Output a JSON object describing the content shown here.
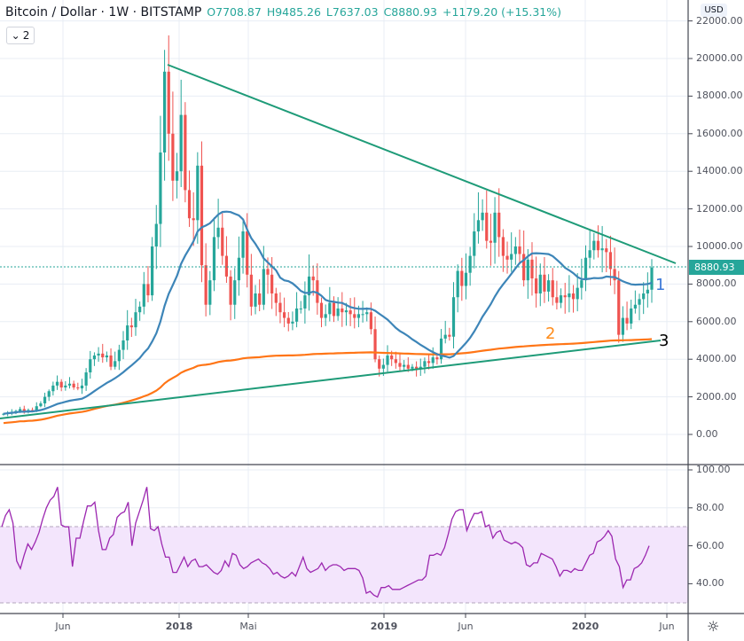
{
  "header": {
    "symbol": "Bitcoin / Dollar · 1W · BITSTAMP",
    "open": "O7708.87",
    "high": "H9485.26",
    "low": "L7637.03",
    "close": "C8880.93",
    "change": "+1179.20 (+15.31%)",
    "collapse_label": "2"
  },
  "axis": {
    "currency": "USD",
    "current_price": "8880.93",
    "price_ticks": [
      "22000.00",
      "20000.00",
      "18000.00",
      "16000.00",
      "14000.00",
      "12000.00",
      "10000.00",
      "8000.00",
      "6000.00",
      "4000.00",
      "2000.00",
      "0.00"
    ],
    "rsi_ticks": [
      "100.00",
      "80.00",
      "60.00",
      "40.00"
    ],
    "time_ticks": [
      "Jun",
      "2018",
      "Mai",
      "2019",
      "Jun",
      "2020",
      "Jun"
    ]
  },
  "annotations": {
    "label_1": "1",
    "label_2": "2",
    "label_3": "3"
  },
  "colors": {
    "up": "#26a69a",
    "down": "#ef5350",
    "ma_fast": "#3d85b8",
    "ma_slow": "#ff7516",
    "trendline": "#1e9b78",
    "rsi": "#9c27b0",
    "rsi_band": "#f3e5fc",
    "label_1": "#3b78d8",
    "label_2": "#ff8c1a",
    "label_3": "#000000"
  },
  "chart_data": [
    {
      "type": "candlestick",
      "title": "Bitcoin / Dollar · 1W · BITSTAMP",
      "ylabel": "USD",
      "ylim": [
        -1000,
        23000
      ],
      "grid": true,
      "x_ticks": [
        "Jun 2017",
        "2018",
        "Mai 2018",
        "2019",
        "Jun 2019",
        "2020",
        "Jun 2020"
      ],
      "last_bar": {
        "open": 7708.87,
        "high": 9485.26,
        "low": 7637.03,
        "close": 8880.93,
        "change": 1179.2,
        "change_pct": 15.31
      },
      "approx_weekly_closes": [
        1100,
        1150,
        1200,
        1250,
        1350,
        1200,
        1300,
        1250,
        1500,
        1650,
        2000,
        2300,
        2600,
        2800,
        2500,
        2600,
        2700,
        2500,
        2450,
        2600,
        3300,
        4000,
        4200,
        4300,
        4100,
        4200,
        3600,
        3900,
        4500,
        5000,
        5800,
        5700,
        6500,
        6800,
        8000,
        7400,
        10000,
        11200,
        15000,
        19300,
        16000,
        13500,
        14000,
        17000,
        13000,
        11500,
        11400,
        14300,
        9000,
        6900,
        8200,
        10500,
        11000,
        9500,
        8400,
        6900,
        8200,
        9400,
        10800,
        8500,
        6800,
        7500,
        6900,
        8800,
        8500,
        7500,
        7000,
        6500,
        6200,
        5900,
        6000,
        6700,
        6700,
        7400,
        8400,
        8200,
        7000,
        6200,
        6400,
        7000,
        6300,
        6700,
        6500,
        6600,
        6400,
        6200,
        6400,
        6400,
        6500,
        5600,
        4000,
        3500,
        3700,
        4200,
        4000,
        3800,
        3600,
        3700,
        3500,
        3600,
        3500,
        3600,
        3900,
        3800,
        4100,
        4000,
        5100,
        5300,
        5200,
        7300,
        8700,
        7900,
        8600,
        9500,
        10800,
        11400,
        11800,
        10300,
        10200,
        11800,
        10500,
        9500,
        9300,
        9600,
        10000,
        9600,
        8200,
        9300,
        8300,
        7500,
        8500,
        7600,
        8200,
        7300,
        7000,
        7400,
        7300,
        7500,
        7200,
        7800,
        8200,
        9400,
        9800,
        10300,
        9800,
        9900,
        9700,
        8800,
        8200,
        5300,
        6200,
        5900,
        6700,
        6900,
        7200,
        7500,
        7700,
        8880.93
      ],
      "overlays": [
        {
          "name": "MA fast (label 1)",
          "color": "#3d85b8",
          "last": 7800
        },
        {
          "name": "MA slow (label 2)",
          "color": "#ff7516",
          "last": 5700
        },
        {
          "name": "Descending trendline",
          "color": "#1e9b78",
          "points": [
            [
              "Dec 2017",
              19700
            ],
            [
              "Jun 2020",
              9100
            ]
          ]
        },
        {
          "name": "Ascending trendline (label 3)",
          "color": "#1e9b78",
          "points": [
            [
              "Mar 2017",
              900
            ],
            [
              "May 2020",
              5000
            ]
          ]
        }
      ],
      "current_price_line": 8880.93
    },
    {
      "type": "line",
      "title": "RSI",
      "ylim": [
        25,
        100
      ],
      "y_ticks": [
        100,
        80,
        60,
        40
      ],
      "band": [
        30,
        70
      ],
      "values": [
        70,
        76,
        79,
        72,
        52,
        48,
        55,
        61,
        58,
        62,
        67,
        74,
        80,
        84,
        86,
        91,
        71,
        70,
        70,
        49,
        64,
        64,
        73,
        81,
        81,
        83,
        68,
        58,
        58,
        64,
        66,
        75,
        77,
        78,
        83,
        60,
        72,
        78,
        84,
        91,
        69,
        68,
        70,
        61,
        54,
        54,
        46,
        46,
        50,
        54,
        49,
        52,
        53,
        49,
        49,
        50,
        48,
        46,
        45,
        47,
        52,
        49,
        56,
        55,
        50,
        48,
        49,
        51,
        52,
        53,
        51,
        50,
        48,
        45,
        46,
        44,
        43,
        44,
        46,
        44,
        49,
        54,
        48,
        46,
        47,
        48,
        51,
        47,
        49,
        50,
        50,
        49,
        47,
        48,
        48,
        48,
        47,
        43,
        35,
        36,
        34,
        33,
        38,
        38,
        39,
        37,
        37,
        37,
        38,
        39,
        40,
        41,
        42,
        42,
        44,
        55,
        55,
        56,
        55,
        59,
        66,
        74,
        78,
        79,
        79,
        68,
        73,
        77,
        77,
        78,
        70,
        71,
        64,
        67,
        68,
        63,
        62,
        61,
        62,
        61,
        59,
        50,
        49,
        51,
        51,
        56,
        55,
        54,
        53,
        49,
        44,
        47,
        47,
        46,
        48,
        47,
        47,
        51,
        55,
        56,
        62,
        63,
        65,
        68,
        65,
        53,
        49,
        38,
        42,
        42,
        48,
        49,
        51,
        55,
        60
      ]
    }
  ]
}
